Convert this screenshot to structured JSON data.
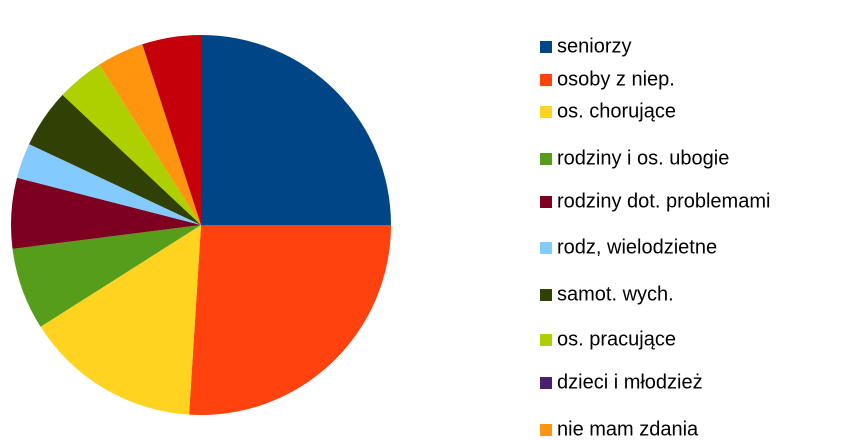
{
  "chart_data": {
    "type": "pie",
    "categories": [
      "seniorzy",
      "osoby z niep.",
      "os. chorujące",
      "rodziny i os. ubogie",
      "rodziny dot. problemami",
      "rodz, wielodzietne",
      "samot. wych.",
      "os. pracujące",
      "dzieci i młodzież",
      "nie mam zdania",
      null
    ],
    "values": [
      25,
      26,
      15,
      7,
      6,
      3,
      5,
      4,
      0,
      4,
      5
    ],
    "colors": [
      "#004586",
      "#ff420e",
      "#ffd320",
      "#579d1c",
      "#7e0021",
      "#83caff",
      "#314004",
      "#aecf00",
      "#4b1f6f",
      "#ff950e",
      "#c5000b"
    ],
    "legend": "right"
  }
}
